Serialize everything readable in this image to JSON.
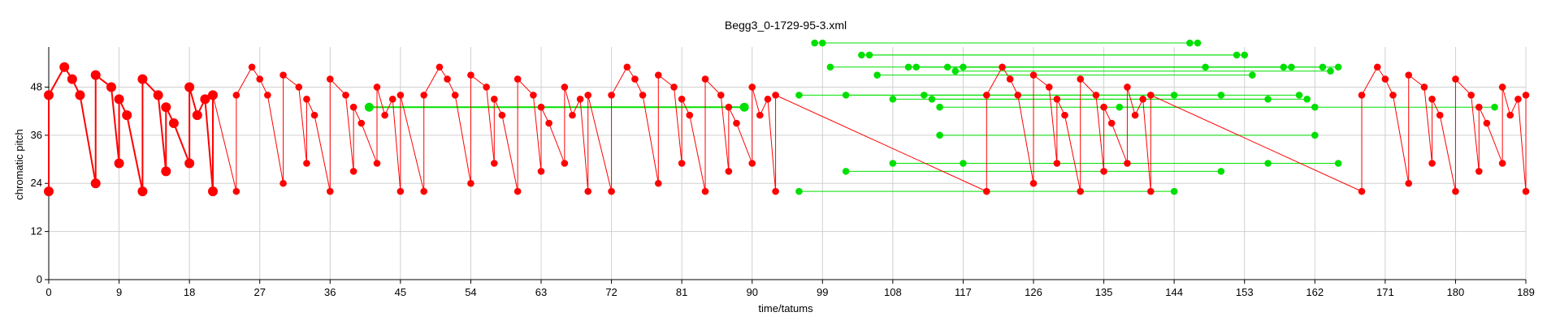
{
  "chart_data": {
    "type": "line",
    "title": "Begg3_0-1729-95-3.xml",
    "xlabel": "time/tatums",
    "ylabel": "chromatic pitch",
    "xlim": [
      0,
      189
    ],
    "ylim": [
      0,
      58
    ],
    "x_ticks": [
      0,
      9,
      18,
      27,
      36,
      45,
      54,
      63,
      72,
      81,
      90,
      99,
      108,
      117,
      126,
      135,
      144,
      153,
      162,
      171,
      180,
      189
    ],
    "y_ticks": [
      0,
      12,
      24,
      36,
      48
    ],
    "grid": true,
    "colors": {
      "red": "#ff0000",
      "green": "#00e000"
    },
    "series": [
      {
        "color": "red",
        "points": [
          [
            0,
            22,
            "l"
          ],
          [
            0,
            46,
            "l"
          ],
          [
            2,
            53,
            "l"
          ],
          [
            3,
            50,
            "l"
          ],
          [
            4,
            46,
            "l"
          ],
          [
            6,
            24,
            "l"
          ],
          [
            6,
            51,
            "l"
          ],
          [
            8,
            48,
            "l"
          ],
          [
            9,
            29,
            "l"
          ],
          [
            9,
            45,
            "l"
          ],
          [
            10,
            41,
            "l"
          ],
          [
            12,
            22,
            "l"
          ],
          [
            12,
            50,
            "l"
          ],
          [
            14,
            46,
            "l"
          ],
          [
            15,
            27,
            "l"
          ],
          [
            15,
            43,
            "l"
          ],
          [
            16,
            39,
            "l"
          ],
          [
            18,
            29,
            "l"
          ],
          [
            18,
            48,
            "l"
          ],
          [
            19,
            41,
            "l"
          ],
          [
            20,
            45,
            "l"
          ],
          [
            21,
            22,
            "l"
          ],
          [
            21,
            46,
            "l"
          ],
          [
            24,
            22,
            "s"
          ],
          [
            24,
            46,
            "s"
          ],
          [
            26,
            53,
            "s"
          ],
          [
            27,
            50,
            "s"
          ],
          [
            28,
            46,
            "s"
          ],
          [
            30,
            24,
            "s"
          ],
          [
            30,
            51,
            "s"
          ],
          [
            32,
            48,
            "s"
          ],
          [
            33,
            29,
            "s"
          ],
          [
            33,
            45,
            "s"
          ],
          [
            34,
            41,
            "s"
          ],
          [
            36,
            22,
            "s"
          ],
          [
            36,
            50,
            "s"
          ],
          [
            38,
            46,
            "s"
          ],
          [
            39,
            27,
            "s"
          ],
          [
            39,
            43,
            "s"
          ],
          [
            40,
            39,
            "s"
          ],
          [
            42,
            29,
            "s"
          ],
          [
            42,
            48,
            "s"
          ],
          [
            43,
            41,
            "s"
          ],
          [
            44,
            45,
            "s"
          ],
          [
            45,
            22,
            "s"
          ],
          [
            45,
            46,
            "s"
          ],
          [
            48,
            22,
            "s"
          ],
          [
            48,
            46,
            "s"
          ],
          [
            50,
            53,
            "s"
          ],
          [
            51,
            50,
            "s"
          ],
          [
            52,
            46,
            "s"
          ],
          [
            54,
            24,
            "s"
          ],
          [
            54,
            51,
            "s"
          ],
          [
            56,
            48,
            "s"
          ],
          [
            57,
            29,
            "s"
          ],
          [
            57,
            45,
            "s"
          ],
          [
            58,
            41,
            "s"
          ],
          [
            60,
            22,
            "s"
          ],
          [
            60,
            50,
            "s"
          ],
          [
            62,
            46,
            "s"
          ],
          [
            63,
            27,
            "s"
          ],
          [
            63,
            43,
            "s"
          ],
          [
            64,
            39,
            "s"
          ],
          [
            66,
            29,
            "s"
          ],
          [
            66,
            48,
            "s"
          ],
          [
            67,
            41,
            "s"
          ],
          [
            68,
            45,
            "s"
          ],
          [
            69,
            22,
            "s"
          ],
          [
            69,
            46,
            "s"
          ],
          [
            72,
            22,
            "s"
          ],
          [
            72,
            46,
            "s"
          ],
          [
            74,
            53,
            "s"
          ],
          [
            75,
            50,
            "s"
          ],
          [
            76,
            46,
            "s"
          ],
          [
            78,
            24,
            "s"
          ],
          [
            78,
            51,
            "s"
          ],
          [
            80,
            48,
            "s"
          ],
          [
            81,
            29,
            "s"
          ],
          [
            81,
            45,
            "s"
          ],
          [
            82,
            41,
            "s"
          ],
          [
            84,
            22,
            "s"
          ],
          [
            84,
            50,
            "s"
          ],
          [
            86,
            46,
            "s"
          ],
          [
            87,
            27,
            "s"
          ],
          [
            87,
            43,
            "s"
          ],
          [
            88,
            39,
            "s"
          ],
          [
            90,
            29,
            "s"
          ],
          [
            90,
            48,
            "s"
          ],
          [
            91,
            41,
            "s"
          ],
          [
            92,
            45,
            "s"
          ],
          [
            93,
            22,
            "s"
          ],
          [
            93,
            46,
            "s"
          ],
          [
            120,
            22,
            "s"
          ],
          [
            120,
            46,
            "s"
          ],
          [
            122,
            53,
            "s"
          ],
          [
            123,
            50,
            "s"
          ],
          [
            124,
            46,
            "s"
          ],
          [
            126,
            24,
            "s"
          ],
          [
            126,
            51,
            "s"
          ],
          [
            128,
            48,
            "s"
          ],
          [
            129,
            29,
            "s"
          ],
          [
            129,
            45,
            "s"
          ],
          [
            130,
            41,
            "s"
          ],
          [
            132,
            22,
            "s"
          ],
          [
            132,
            50,
            "s"
          ],
          [
            134,
            46,
            "s"
          ],
          [
            135,
            27,
            "s"
          ],
          [
            135,
            43,
            "s"
          ],
          [
            136,
            39,
            "s"
          ],
          [
            138,
            29,
            "s"
          ],
          [
            138,
            48,
            "s"
          ],
          [
            139,
            41,
            "s"
          ],
          [
            140,
            45,
            "s"
          ],
          [
            141,
            22,
            "s"
          ],
          [
            141,
            46,
            "s"
          ],
          [
            168,
            22,
            "s"
          ],
          [
            168,
            46,
            "s"
          ],
          [
            170,
            53,
            "s"
          ],
          [
            171,
            50,
            "s"
          ],
          [
            172,
            46,
            "s"
          ],
          [
            174,
            24,
            "s"
          ],
          [
            174,
            51,
            "s"
          ],
          [
            176,
            48,
            "s"
          ],
          [
            177,
            29,
            "s"
          ],
          [
            177,
            45,
            "s"
          ],
          [
            178,
            41,
            "s"
          ],
          [
            180,
            22,
            "s"
          ],
          [
            180,
            50,
            "s"
          ],
          [
            182,
            46,
            "s"
          ],
          [
            183,
            27,
            "s"
          ],
          [
            183,
            43,
            "s"
          ],
          [
            184,
            39,
            "s"
          ],
          [
            186,
            29,
            "s"
          ],
          [
            186,
            48,
            "s"
          ],
          [
            187,
            41,
            "s"
          ],
          [
            188,
            45,
            "s"
          ],
          [
            189,
            22,
            "s"
          ],
          [
            189,
            46,
            "s"
          ]
        ]
      },
      {
        "color": "green",
        "segments": [
          [
            41,
            43,
            89,
            43,
            "l"
          ],
          [
            98,
            59,
            146,
            59,
            "s"
          ],
          [
            99,
            59,
            147,
            59,
            "s"
          ],
          [
            104,
            56,
            152,
            56,
            "s"
          ],
          [
            105,
            56,
            153,
            56,
            "s"
          ],
          [
            100,
            53,
            148,
            53,
            "s"
          ],
          [
            110,
            53,
            158,
            53,
            "s"
          ],
          [
            111,
            53,
            159,
            53,
            "s"
          ],
          [
            115,
            53,
            163,
            53,
            "s"
          ],
          [
            116,
            52,
            164,
            52,
            "s"
          ],
          [
            117,
            53,
            165,
            53,
            "s"
          ],
          [
            106,
            51,
            154,
            51,
            "s"
          ],
          [
            96,
            46,
            144,
            46,
            "s"
          ],
          [
            102,
            46,
            150,
            46,
            "s"
          ],
          [
            112,
            46,
            160,
            46,
            "s"
          ],
          [
            108,
            45,
            156,
            45,
            "s"
          ],
          [
            113,
            45,
            161,
            45,
            "s"
          ],
          [
            114,
            43,
            162,
            43,
            "s"
          ],
          [
            137,
            43,
            185,
            43,
            "s"
          ],
          [
            114,
            36,
            162,
            36,
            "s"
          ],
          [
            108,
            29,
            156,
            29,
            "s"
          ],
          [
            117,
            29,
            165,
            29,
            "s"
          ],
          [
            102,
            27,
            150,
            27,
            "s"
          ],
          [
            96,
            22,
            144,
            22,
            "s"
          ]
        ]
      }
    ]
  }
}
